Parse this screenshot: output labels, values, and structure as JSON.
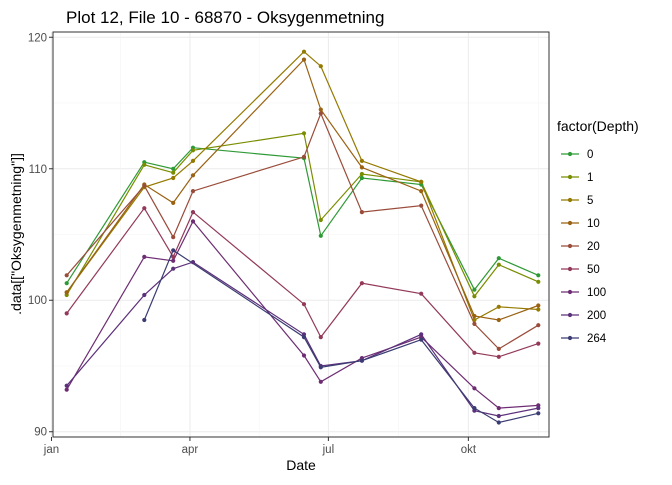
{
  "chart_data": {
    "type": "line",
    "title": "Plot 12, File 10 - 68870  -  Oksygenmetning",
    "xlabel": "Date",
    "ylabel": ".data[[\"Oksygenmetning\"]]",
    "xlim": [
      "2020-01-02",
      "2020-11-23"
    ],
    "ylim": [
      89.6,
      120.4
    ],
    "x_ticks": [
      {
        "date": "2020-01-01",
        "label": "jan"
      },
      {
        "date": "2020-04-01",
        "label": "apr"
      },
      {
        "date": "2020-07-01",
        "label": "jul"
      },
      {
        "date": "2020-10-01",
        "label": "okt"
      }
    ],
    "y_ticks": [
      90,
      100,
      110,
      120
    ],
    "grid": true,
    "legend": {
      "title": "factor(Depth)",
      "placement": "right"
    },
    "x": [
      "2020-01-11",
      "2020-03-02",
      "2020-03-21",
      "2020-04-03",
      "2020-06-15",
      "2020-06-26",
      "2020-07-23",
      "2020-08-31",
      "2020-10-05",
      "2020-10-21",
      "2020-11-16"
    ],
    "series": [
      {
        "name": "0",
        "color": "#2e9a35",
        "values": [
          101.3,
          110.5,
          110.0,
          111.6,
          110.8,
          104.9,
          109.3,
          108.8,
          100.8,
          103.2,
          101.9
        ]
      },
      {
        "name": "1",
        "color": "#7a8d00",
        "values": [
          100.4,
          110.3,
          109.7,
          111.4,
          112.7,
          106.1,
          109.6,
          109.0,
          100.3,
          102.7,
          101.4
        ]
      },
      {
        "name": "5",
        "color": "#947a00",
        "values": [
          100.6,
          108.6,
          109.3,
          110.6,
          118.9,
          117.8,
          110.6,
          109.0,
          98.5,
          99.5,
          99.3
        ]
      },
      {
        "name": "10",
        "color": "#9a6212",
        "values": [
          100.6,
          108.8,
          107.4,
          109.5,
          118.3,
          114.5,
          110.1,
          108.3,
          98.8,
          98.5,
          99.6
        ]
      },
      {
        "name": "20",
        "color": "#9a4c3a",
        "values": [
          101.9,
          108.7,
          104.8,
          108.3,
          110.9,
          114.2,
          106.7,
          107.2,
          98.2,
          96.3,
          98.1
        ]
      },
      {
        "name": "50",
        "color": "#93395a",
        "values": [
          99.0,
          107.0,
          103.3,
          106.7,
          99.7,
          97.2,
          101.3,
          100.5,
          96.0,
          95.7,
          96.7
        ]
      },
      {
        "name": "100",
        "color": "#6e2d73",
        "values": [
          93.2,
          103.3,
          103.0,
          106.0,
          95.8,
          93.8,
          95.6,
          97.2,
          93.3,
          91.8,
          92.0
        ]
      },
      {
        "name": "200",
        "color": "#5c307a",
        "values": [
          93.5,
          100.4,
          102.4,
          102.9,
          97.4,
          95.0,
          95.4,
          97.4,
          91.6,
          91.2,
          91.8
        ]
      },
      {
        "name": "264",
        "color": "#3b3c73",
        "values": [
          null,
          98.5,
          103.8,
          null,
          97.2,
          94.9,
          95.4,
          97.0,
          91.8,
          90.7,
          91.4
        ]
      }
    ]
  }
}
